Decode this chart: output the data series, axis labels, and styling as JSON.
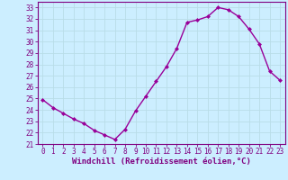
{
  "x": [
    0,
    1,
    2,
    3,
    4,
    5,
    6,
    7,
    8,
    9,
    10,
    11,
    12,
    13,
    14,
    15,
    16,
    17,
    18,
    19,
    20,
    21,
    22,
    23
  ],
  "y": [
    24.9,
    24.2,
    23.7,
    23.2,
    22.8,
    22.2,
    21.8,
    21.4,
    22.3,
    23.9,
    25.2,
    26.5,
    27.8,
    29.4,
    31.7,
    31.9,
    32.2,
    33.0,
    32.8,
    32.2,
    31.1,
    29.8,
    27.4,
    26.6
  ],
  "line_color": "#990099",
  "marker": "D",
  "markersize": 2.0,
  "linewidth": 1.0,
  "xlabel": "Windchill (Refroidissement éolien,°C)",
  "xlabel_fontsize": 6.5,
  "ylim": [
    21,
    33.5
  ],
  "xlim": [
    -0.5,
    23.5
  ],
  "yticks": [
    21,
    22,
    23,
    24,
    25,
    26,
    27,
    28,
    29,
    30,
    31,
    32,
    33
  ],
  "xticks": [
    0,
    1,
    2,
    3,
    4,
    5,
    6,
    7,
    8,
    9,
    10,
    11,
    12,
    13,
    14,
    15,
    16,
    17,
    18,
    19,
    20,
    21,
    22,
    23
  ],
  "bg_color": "#cceeff",
  "grid_color": "#b8dde8",
  "tick_color": "#800080",
  "tick_fontsize": 5.5,
  "spine_color": "#800080"
}
